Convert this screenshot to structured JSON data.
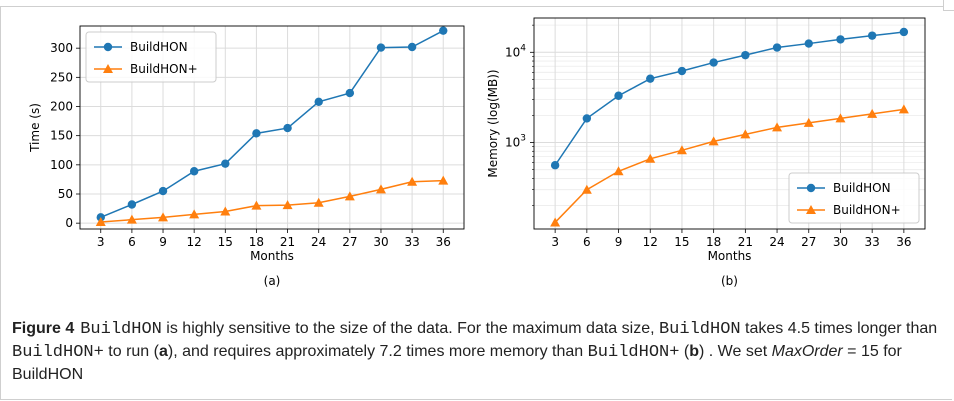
{
  "chart_data": [
    {
      "type": "line",
      "panel_label": "(a)",
      "xlabel": "Months",
      "ylabel": "Time (s)",
      "x": [
        3,
        6,
        9,
        12,
        15,
        18,
        21,
        24,
        27,
        30,
        33,
        36
      ],
      "xlim": [
        1,
        38
      ],
      "ylim": [
        -10,
        338
      ],
      "y_scale": "linear",
      "yticks": [
        0,
        50,
        100,
        150,
        200,
        250,
        300
      ],
      "grid": true,
      "legend_position": "top-left",
      "series": [
        {
          "name": "BuildHON",
          "color": "#1f77b4",
          "marker": "circle",
          "values": [
            10,
            32,
            55,
            89,
            102,
            154,
            163,
            208,
            223,
            301,
            302,
            330
          ]
        },
        {
          "name": "BuildHON+",
          "color": "#ff7f0e",
          "marker": "triangle",
          "values": [
            2,
            6,
            10,
            15,
            20,
            30,
            31,
            35,
            46,
            58,
            71,
            73
          ]
        }
      ]
    },
    {
      "type": "line",
      "panel_label": "(b)",
      "xlabel": "Months",
      "ylabel": "Memory (log(MB))",
      "x": [
        3,
        6,
        9,
        12,
        15,
        18,
        21,
        24,
        27,
        30,
        33,
        36
      ],
      "xlim": [
        1,
        38
      ],
      "ylim": [
        110,
        24000
      ],
      "y_scale": "log",
      "yticks": [
        1000,
        10000
      ],
      "ytick_labels": [
        "10^3",
        "10^4"
      ],
      "grid": true,
      "legend_position": "bottom-right",
      "series": [
        {
          "name": "BuildHON",
          "color": "#1f77b4",
          "marker": "circle",
          "values": [
            560,
            1850,
            3300,
            5100,
            6200,
            7700,
            9300,
            11300,
            12500,
            13900,
            15300,
            16800
          ]
        },
        {
          "name": "BuildHON+",
          "color": "#ff7f0e",
          "marker": "triangle",
          "values": [
            130,
            300,
            480,
            660,
            820,
            1030,
            1230,
            1470,
            1650,
            1850,
            2080,
            2330
          ]
        }
      ]
    }
  ],
  "caption": {
    "figure_number": "Figure 4",
    "segments": [
      {
        "text": "BuildHON",
        "style": "mono"
      },
      {
        "text": " is highly sensitive to the size of the data. For the maximum data size, ",
        "style": "plain"
      },
      {
        "text": "BuildHON",
        "style": "mono"
      },
      {
        "text": " takes 4.5 times longer than ",
        "style": "plain"
      },
      {
        "text": "BuildHON+",
        "style": "mono"
      },
      {
        "text": " to run (",
        "style": "plain"
      },
      {
        "text": "a",
        "style": "bold"
      },
      {
        "text": "), and requires approximately 7.2 times more memory than ",
        "style": "plain"
      },
      {
        "text": "BuildHON+",
        "style": "mono"
      },
      {
        "text": " (",
        "style": "plain"
      },
      {
        "text": "b",
        "style": "bold"
      },
      {
        "text": ") . We set ",
        "style": "plain"
      },
      {
        "text": "MaxOrder",
        "style": "ital"
      },
      {
        "text": " = 15 for BuildHON",
        "style": "plain"
      }
    ]
  }
}
